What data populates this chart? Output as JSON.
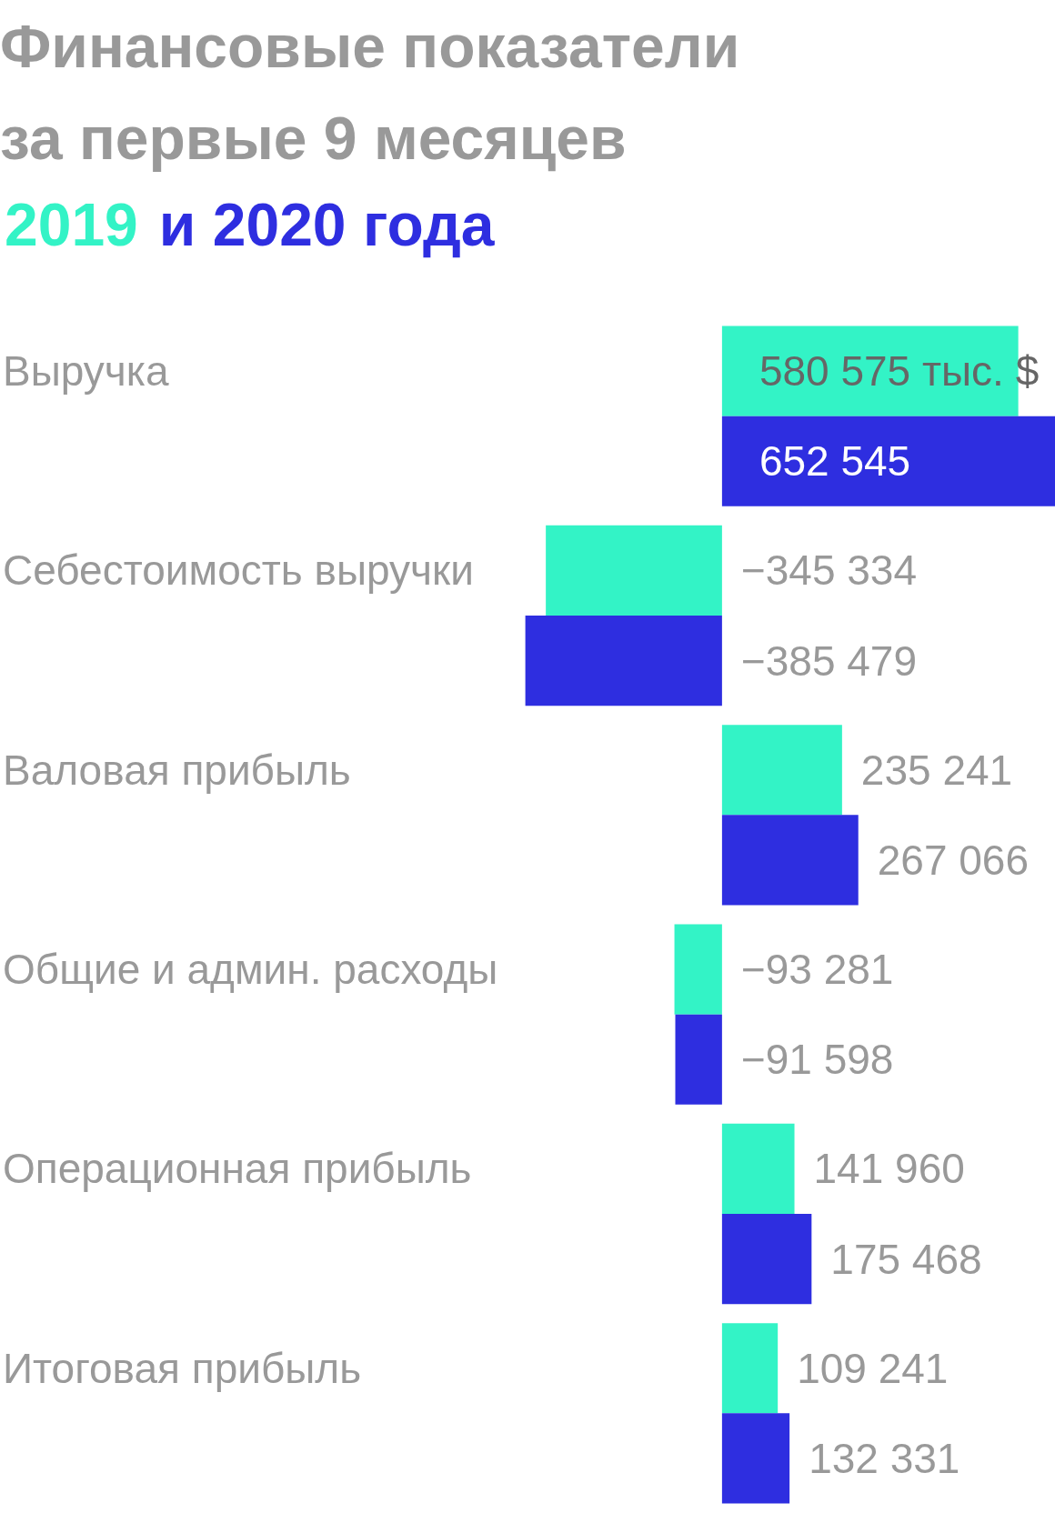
{
  "chart_data": {
    "type": "bar",
    "orientation": "horizontal",
    "title": "Финансовые показатели за первые 9 месяцев",
    "categories": [
      "Выручка",
      "Себестоимость выручки",
      "Валовая прибыль",
      "Общие и админ. расходы",
      "Операционная прибыль",
      "Итоговая прибыль"
    ],
    "series": [
      {
        "name": "2019",
        "color": "#33f3c6",
        "values": [
          580575,
          -345334,
          235241,
          -93281,
          141960,
          109241
        ],
        "value_labels": [
          "580 575 тыс. $",
          "−345 334",
          "235 241",
          "−93 281",
          "141 960",
          "109 241"
        ]
      },
      {
        "name": "и 2020 года",
        "color": "#2e2ee0",
        "values": [
          652545,
          -385479,
          267066,
          -91598,
          175468,
          132331
        ],
        "value_labels": [
          "652 545",
          "−385 479",
          "267 066",
          "−91 598",
          "175 468",
          "132 331"
        ]
      }
    ],
    "legend": "top left",
    "tick_labels": "y"
  }
}
